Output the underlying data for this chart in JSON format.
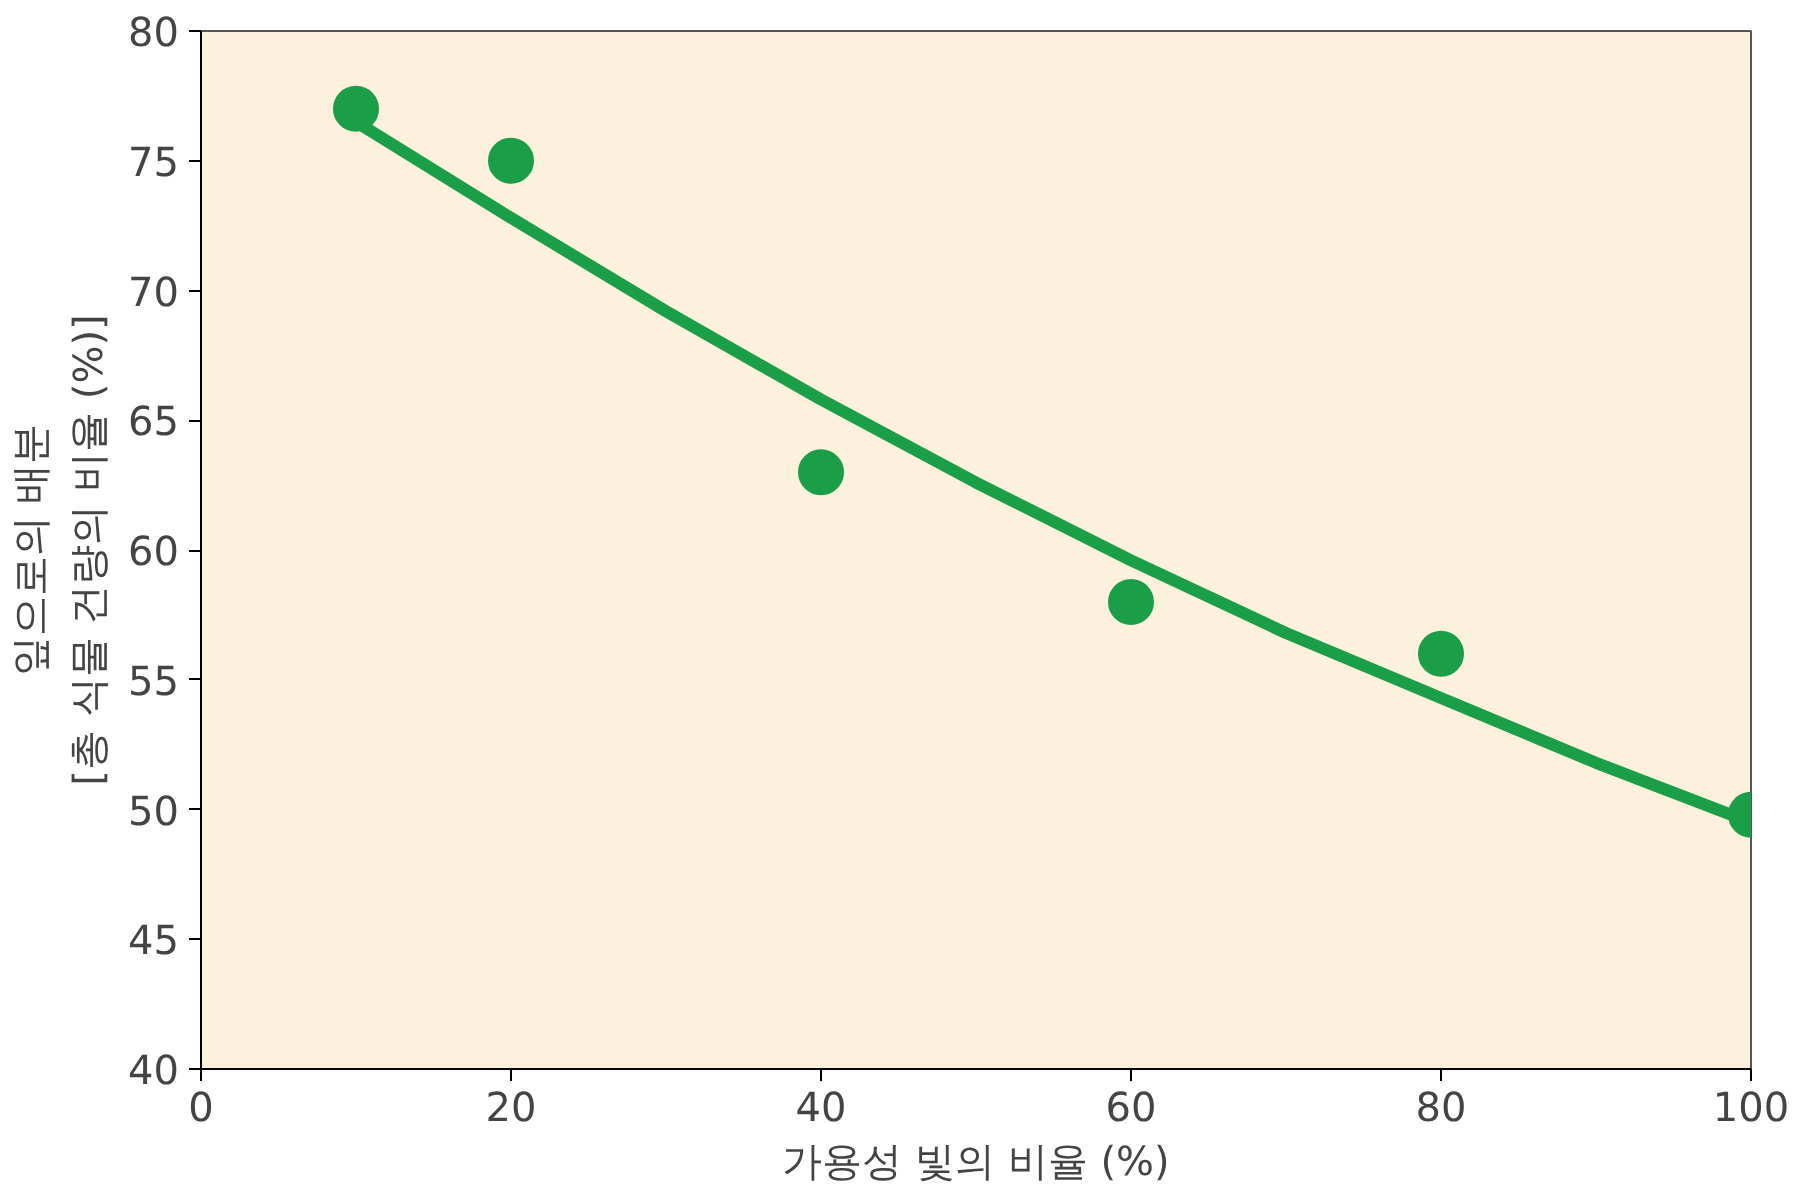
{
  "chart_data": {
    "type": "line",
    "xlabel": "가용성 빛의 비율 (%)",
    "ylabel": "잎으로의 배분\n[총 식물 건량의 비율 (%)]",
    "xlim": [
      0,
      100
    ],
    "ylim": [
      40,
      80
    ],
    "xticks": [
      0,
      20,
      40,
      60,
      80,
      100
    ],
    "yticks": [
      40,
      45,
      50,
      55,
      60,
      65,
      70,
      75,
      80
    ],
    "grid": false,
    "series": [
      {
        "type": "scatter",
        "marker": "circle",
        "color": "#1a9e48",
        "x": [
          10,
          20,
          40,
          60,
          80,
          100
        ],
        "values": [
          77,
          75,
          63,
          58,
          56,
          49.8
        ]
      },
      {
        "color": "#1a9e48",
        "x": [
          10,
          20,
          30,
          40,
          50,
          60,
          70,
          80,
          90,
          100
        ],
        "values": [
          76.5,
          72.8,
          69.2,
          65.8,
          62.6,
          59.6,
          56.8,
          54.3,
          51.8,
          49.5
        ]
      }
    ]
  }
}
